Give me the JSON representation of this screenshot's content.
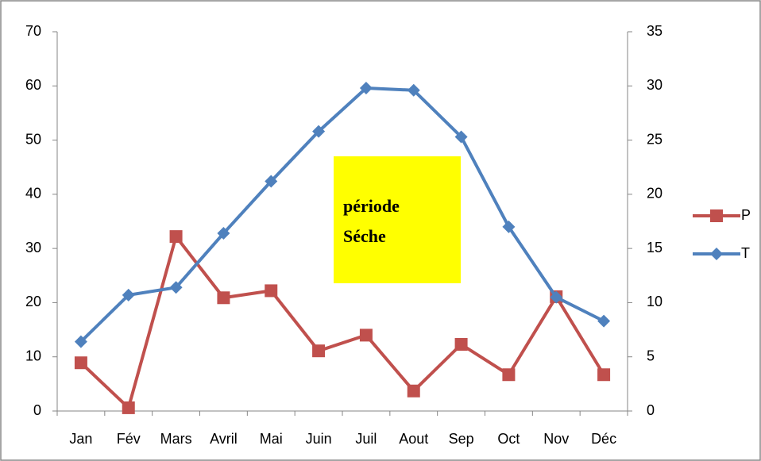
{
  "chart_data": {
    "type": "line",
    "categories": [
      "Jan",
      "Fév",
      "Mars",
      "Avril",
      "Mai",
      "Juin",
      "Juil",
      "Aout",
      "Sep",
      "Oct",
      "Nov",
      "Déc"
    ],
    "series": [
      {
        "name": "P",
        "color": "#c0504d",
        "marker": "square",
        "values": [
          8.9,
          0.6,
          32.2,
          20.9,
          22.2,
          11.1,
          14.0,
          3.7,
          12.3,
          6.7,
          21.1,
          6.7
        ]
      },
      {
        "name": "T",
        "color": "#4f81bd",
        "marker": "diamond",
        "axis": "y2",
        "values": [
          6.4,
          10.7,
          11.4,
          16.4,
          21.2,
          25.8,
          29.8,
          29.6,
          25.3,
          17.0,
          10.5,
          8.3
        ]
      }
    ],
    "ylim": [
      0,
      70
    ],
    "yticks": [
      0,
      10,
      20,
      30,
      40,
      50,
      60,
      70
    ],
    "y2lim": [
      0,
      35
    ],
    "y2ticks": [
      0,
      5,
      10,
      15,
      20,
      25,
      30,
      35
    ],
    "grid": false,
    "legend": "right",
    "annotation": {
      "lines": [
        "période",
        "Séche"
      ],
      "color": "#ffff00"
    }
  }
}
